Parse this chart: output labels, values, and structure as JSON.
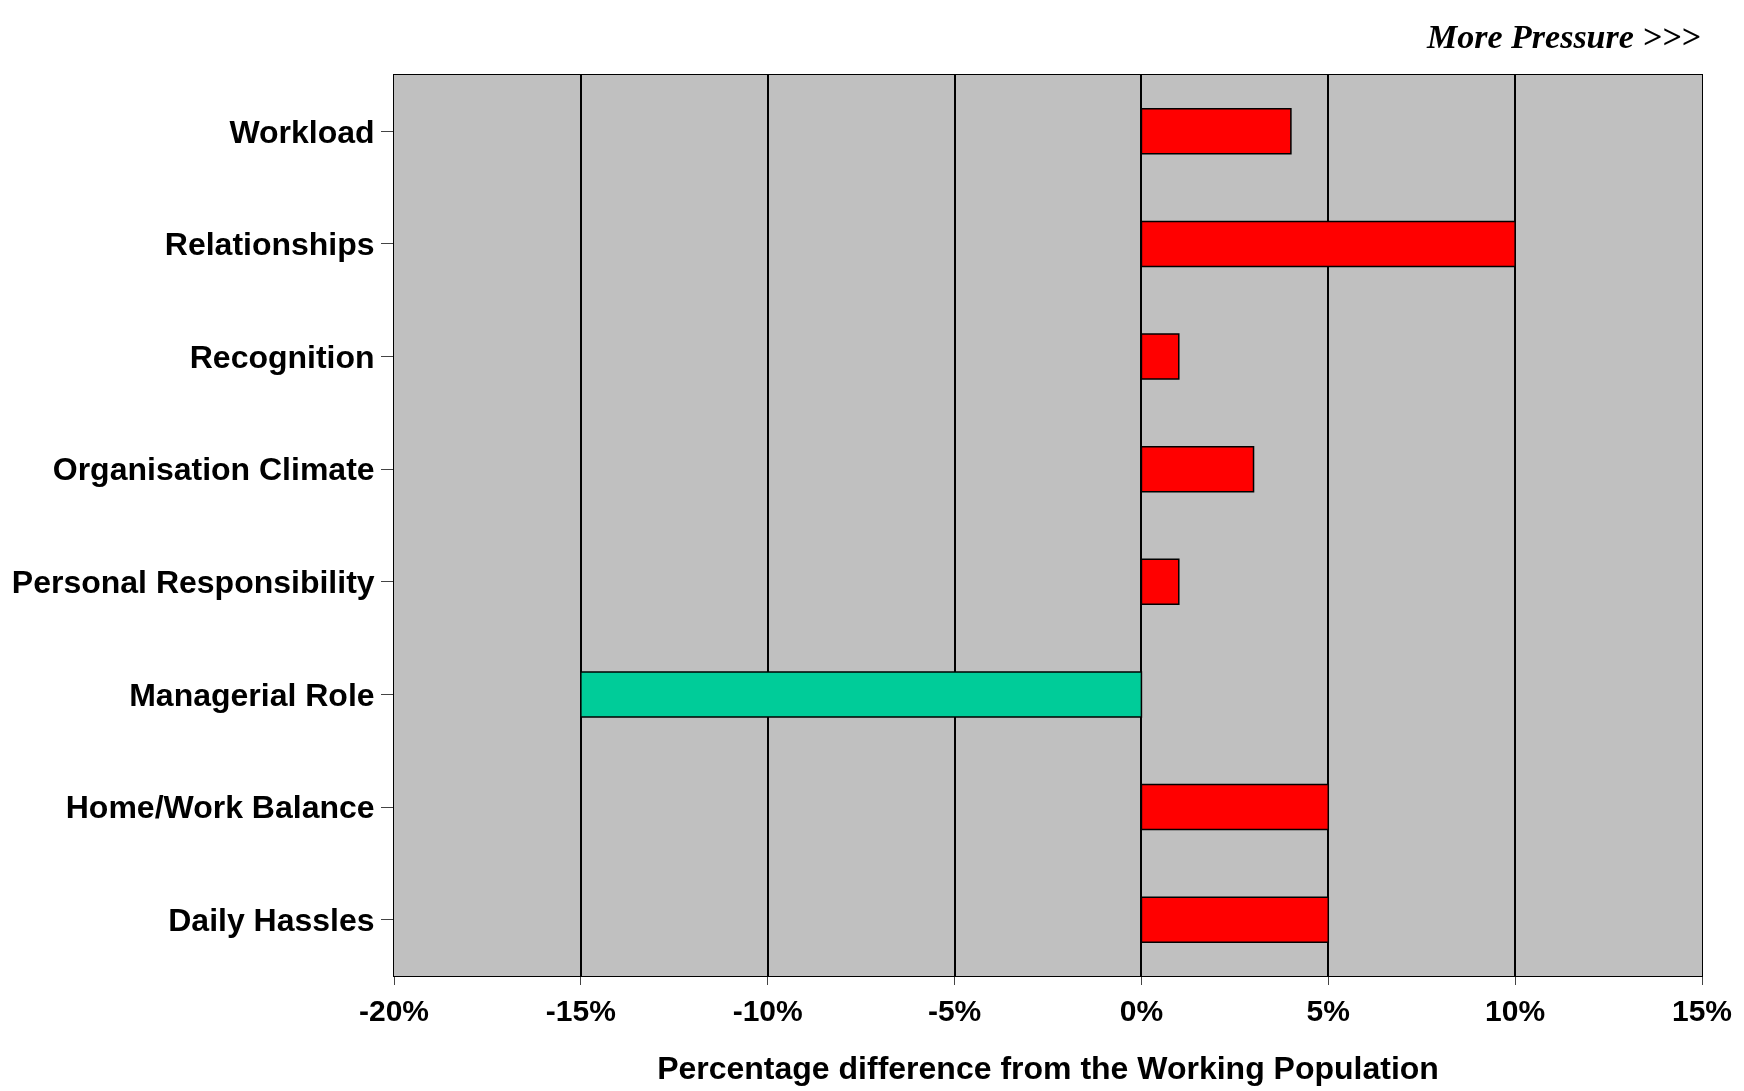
{
  "chart_data": {
    "type": "bar",
    "orientation": "horizontal",
    "categories": [
      "Workload",
      "Relationships",
      "Recognition",
      "Organisation Climate",
      "Personal Responsibility",
      "Managerial Role",
      "Home/Work Balance",
      "Daily Hassles"
    ],
    "values": [
      4,
      10,
      1,
      3,
      1,
      -15,
      5,
      5
    ],
    "colors": [
      "#ff0000",
      "#ff0000",
      "#ff0000",
      "#ff0000",
      "#ff0000",
      "#00cc99",
      "#ff0000",
      "#ff0000"
    ],
    "xlabel": "Percentage difference from the Working Population",
    "xlim": [
      -20,
      15
    ],
    "xticks": [
      {
        "value": -20,
        "label": "-20%"
      },
      {
        "value": -15,
        "label": "-15%"
      },
      {
        "value": -10,
        "label": "-10%"
      },
      {
        "value": -5,
        "label": "-5%"
      },
      {
        "value": 0,
        "label": "0%"
      },
      {
        "value": 5,
        "label": "5%"
      },
      {
        "value": 10,
        "label": "10%"
      },
      {
        "value": 15,
        "label": "15%"
      }
    ],
    "grid": "x",
    "annotations": [
      "More Pressure >>>"
    ]
  }
}
